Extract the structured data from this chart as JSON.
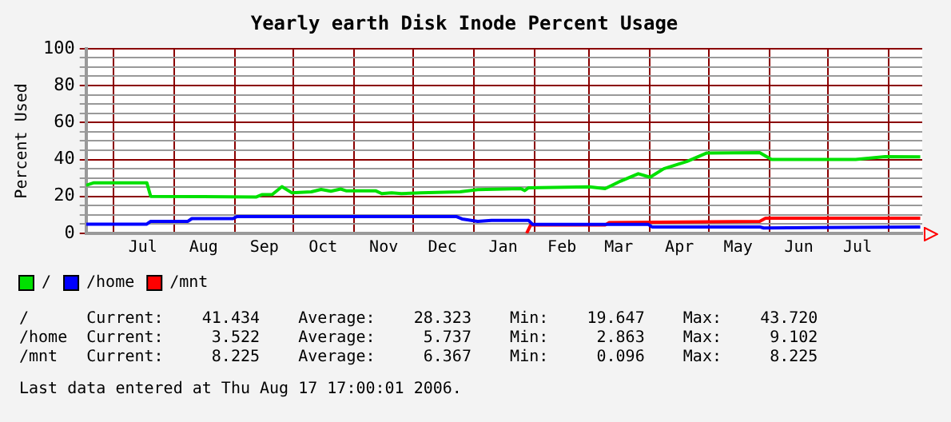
{
  "chart_data": {
    "type": "line",
    "title": "Yearly earth Disk Inode Percent Usage",
    "ylabel": "Percent Used",
    "xlim": [
      "2005-06-17",
      "2006-08-18"
    ],
    "xticks": [
      {
        "value": "2005-07-01",
        "label": null
      },
      {
        "value": "2005-07-16",
        "label": "Jul"
      },
      {
        "value": "2005-08-01",
        "label": null
      },
      {
        "value": "2005-08-16",
        "label": "Aug"
      },
      {
        "value": "2005-09-01",
        "label": null
      },
      {
        "value": "2005-09-16",
        "label": "Sep"
      },
      {
        "value": "2005-10-01",
        "label": null
      },
      {
        "value": "2005-10-16",
        "label": "Oct"
      },
      {
        "value": "2005-11-01",
        "label": null
      },
      {
        "value": "2005-11-16",
        "label": "Nov"
      },
      {
        "value": "2005-12-01",
        "label": null
      },
      {
        "value": "2005-12-16",
        "label": "Dec"
      },
      {
        "value": "2006-01-01",
        "label": null
      },
      {
        "value": "2006-01-16",
        "label": "Jan"
      },
      {
        "value": "2006-02-01",
        "label": null
      },
      {
        "value": "2006-02-15",
        "label": "Feb"
      },
      {
        "value": "2006-03-01",
        "label": null
      },
      {
        "value": "2006-03-16",
        "label": "Mar"
      },
      {
        "value": "2006-04-01",
        "label": null
      },
      {
        "value": "2006-04-16",
        "label": "Apr"
      },
      {
        "value": "2006-05-01",
        "label": null
      },
      {
        "value": "2006-05-16",
        "label": "May"
      },
      {
        "value": "2006-06-01",
        "label": null
      },
      {
        "value": "2006-06-16",
        "label": "Jun"
      },
      {
        "value": "2006-07-01",
        "label": null
      },
      {
        "value": "2006-07-16",
        "label": "Jul"
      },
      {
        "value": "2006-08-01",
        "label": null
      }
    ],
    "ylim": [
      0,
      100
    ],
    "yticks": [
      0,
      {
        "value": 5,
        "label": null
      },
      {
        "value": 10,
        "label": null
      },
      {
        "value": 15,
        "label": null
      },
      20,
      {
        "value": 25,
        "label": null
      },
      {
        "value": 30,
        "label": null
      },
      {
        "value": 35,
        "label": null
      },
      40,
      {
        "value": 45,
        "label": null
      },
      {
        "value": 50,
        "label": null
      },
      {
        "value": 55,
        "label": null
      },
      60,
      {
        "value": 65,
        "label": null
      },
      {
        "value": 70,
        "label": null
      },
      {
        "value": 75,
        "label": null
      },
      80,
      {
        "value": 85,
        "label": null
      },
      {
        "value": 90,
        "label": null
      },
      {
        "value": 95,
        "label": null
      },
      100
    ],
    "grid": true,
    "legend": "bottom left",
    "marker": "none",
    "line_style": "solid",
    "series": [
      {
        "name": "/",
        "color": "#00e000",
        "x": [
          "2005-06-17",
          "2005-06-21",
          "2005-07-18",
          "2005-07-20",
          "2005-09-12",
          "2005-09-15",
          "2005-09-20",
          "2005-09-25",
          "2005-09-30",
          "2005-10-10",
          "2005-10-15",
          "2005-10-20",
          "2005-10-25",
          "2005-10-28",
          "2005-11-12",
          "2005-11-15",
          "2005-11-20",
          "2005-11-25",
          "2005-12-05",
          "2005-12-25",
          "2006-01-03",
          "2006-01-25",
          "2006-01-27",
          "2006-01-29",
          "2006-03-01",
          "2006-03-09",
          "2006-03-17",
          "2006-03-26",
          "2006-04-01",
          "2006-04-08",
          "2006-04-20",
          "2006-04-30",
          "2006-05-27",
          "2006-06-02",
          "2006-07-15",
          "2006-07-30",
          "2006-08-17"
        ],
        "values": [
          26,
          27.4,
          27.4,
          20,
          19.7,
          21,
          21,
          25.3,
          22,
          22.5,
          23.8,
          22.8,
          24,
          23,
          23,
          21.5,
          22,
          21.5,
          22,
          22.5,
          23.7,
          24.2,
          23.2,
          24.7,
          25.2,
          24.2,
          28.3,
          32.3,
          30.4,
          35,
          39,
          43.5,
          43.7,
          40,
          40,
          41.5,
          41.4
        ]
      },
      {
        "name": "/home",
        "color": "#0000ff",
        "x": [
          "2005-06-17",
          "2005-07-18",
          "2005-07-20",
          "2005-08-08",
          "2005-08-10",
          "2005-08-31",
          "2005-09-02",
          "2005-12-23",
          "2005-12-26",
          "2006-01-03",
          "2006-01-10",
          "2006-01-29",
          "2006-01-31",
          "2006-03-31",
          "2006-04-02",
          "2006-05-27",
          "2006-05-29",
          "2006-08-17"
        ],
        "values": [
          5,
          5,
          6.5,
          6.5,
          8,
          8,
          9.1,
          9.1,
          7.8,
          6.5,
          7,
          7,
          4.9,
          4.9,
          3.5,
          3.5,
          2.9,
          3.5
        ]
      },
      {
        "name": "/mnt",
        "color": "#ff0000",
        "x": [
          "2006-01-28",
          "2006-01-30",
          "2006-03-09",
          "2006-03-11",
          "2006-05-27",
          "2006-05-30",
          "2006-08-17"
        ],
        "values": [
          0.1,
          4.5,
          4.5,
          5.8,
          6.5,
          8.2,
          8.2
        ]
      }
    ],
    "annotations": [
      "/      Current:    41.434    Average:    28.323    Min:    19.647    Max:    43.720",
      "/home  Current:     3.522    Average:     5.737    Min:     2.863    Max:     9.102",
      "/mnt   Current:     8.225    Average:     6.367    Min:     0.096    Max:     8.225",
      "Last data entered at Thu Aug 17 17:00:01 2006."
    ]
  }
}
